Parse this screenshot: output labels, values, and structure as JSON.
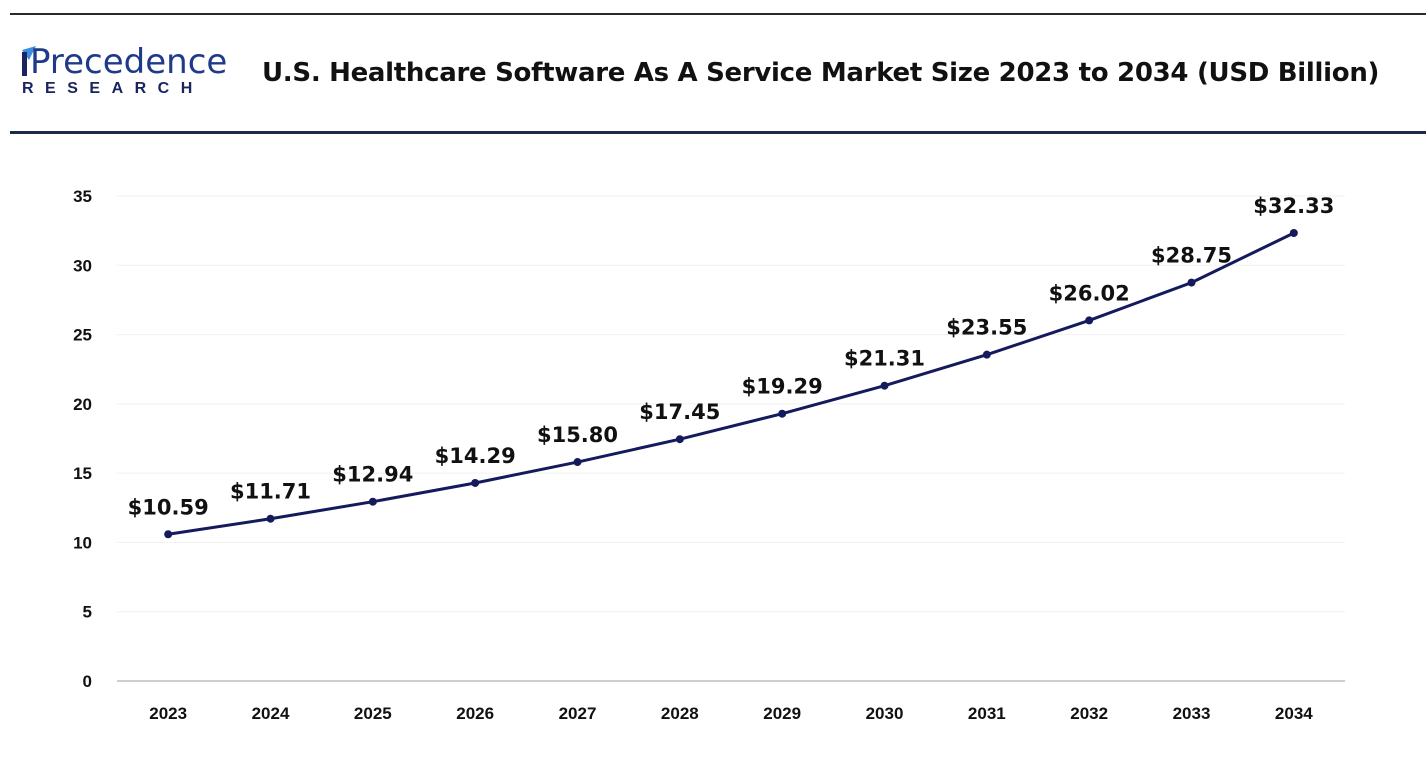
{
  "header": {
    "logo_text": "Precedence",
    "logo_subtext": "RESEARCH",
    "title": "U.S. Healthcare Software As A Service Market Size 2023 to 2034 (USD Billion)"
  },
  "colors": {
    "line": "#141a5c",
    "logo_blue": "#1f3a8a",
    "logo_accent": "#3b8fe0"
  },
  "chart_data": {
    "type": "line",
    "title": "U.S. Healthcare Software As A Service Market Size 2023 to 2034 (USD Billion)",
    "xlabel": "",
    "ylabel": "",
    "categories": [
      "2023",
      "2024",
      "2025",
      "2026",
      "2027",
      "2028",
      "2029",
      "2030",
      "2031",
      "2032",
      "2033",
      "2034"
    ],
    "values": [
      10.59,
      11.71,
      12.94,
      14.29,
      15.8,
      17.45,
      19.29,
      21.31,
      23.55,
      26.02,
      28.75,
      32.33
    ],
    "data_labels": [
      "$10.59",
      "$11.71",
      "$12.94",
      "$14.29",
      "$15.80",
      "$17.45",
      "$19.29",
      "$21.31",
      "$23.55",
      "$26.02",
      "$28.75",
      "$32.33"
    ],
    "yticks": [
      0,
      5,
      10,
      15,
      20,
      25,
      30,
      35
    ],
    "ylim": [
      0,
      35
    ],
    "grid": true,
    "legend": "none"
  }
}
